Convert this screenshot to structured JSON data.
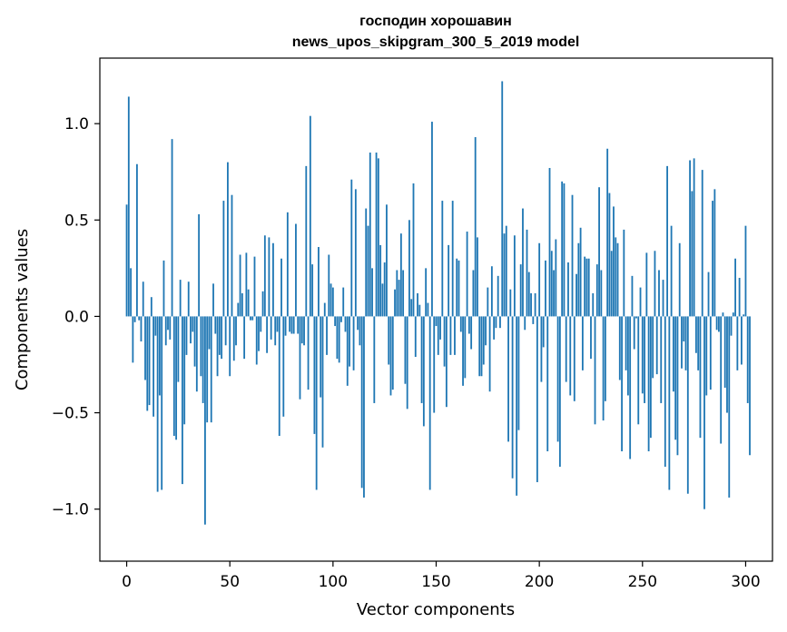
{
  "chart_data": {
    "type": "bar",
    "title": "господин хорошавин",
    "subtitle": "news_upos_skipgram_300_5_2019 model",
    "xlabel": "Vector components",
    "ylabel": "Components values",
    "xlim": [
      -13,
      313
    ],
    "ylim": [
      -1.27,
      1.34
    ],
    "xticks": [
      0,
      50,
      100,
      150,
      200,
      250,
      300
    ],
    "xtick_labels": [
      "0",
      "50",
      "100",
      "150",
      "200",
      "250",
      "300"
    ],
    "yticks": [
      -1.0,
      -0.5,
      0.0,
      0.5,
      1.0
    ],
    "ytick_labels": [
      "−1.0",
      "−0.5",
      "0.0",
      "0.5",
      "1.0"
    ],
    "bar_color": "#1f77b4",
    "grid": false,
    "values": [
      0.58,
      1.14,
      0.25,
      -0.24,
      -0.03,
      0.79,
      -0.02,
      -0.13,
      0.18,
      -0.33,
      -0.49,
      -0.46,
      0.1,
      -0.52,
      -0.1,
      -0.91,
      -0.41,
      -0.9,
      0.29,
      -0.15,
      -0.07,
      -0.12,
      0.92,
      -0.62,
      -0.64,
      -0.34,
      0.19,
      -0.87,
      -0.56,
      -0.2,
      0.18,
      -0.14,
      -0.08,
      -0.26,
      -0.39,
      0.53,
      -0.31,
      -0.45,
      -1.08,
      -0.55,
      -0.17,
      -0.55,
      0.17,
      -0.09,
      -0.31,
      -0.2,
      -0.22,
      0.6,
      -0.15,
      0.8,
      -0.31,
      0.63,
      -0.23,
      -0.15,
      0.07,
      0.32,
      0.12,
      -0.22,
      0.33,
      0.14,
      -0.02,
      -0.02,
      0.31,
      -0.25,
      -0.18,
      -0.08,
      0.13,
      0.42,
      -0.19,
      0.41,
      -0.12,
      0.38,
      -0.15,
      -0.08,
      -0.62,
      0.3,
      -0.52,
      -0.1,
      0.54,
      -0.08,
      -0.09,
      -0.09,
      0.48,
      -0.09,
      -0.43,
      -0.14,
      -0.15,
      0.78,
      -0.38,
      1.04,
      0.27,
      -0.61,
      -0.9,
      0.36,
      -0.42,
      -0.68,
      0.07,
      -0.2,
      0.32,
      0.17,
      0.15,
      -0.05,
      -0.22,
      -0.24,
      -0.03,
      0.15,
      -0.08,
      -0.36,
      -0.26,
      0.71,
      -0.28,
      0.66,
      -0.07,
      -0.15,
      -0.89,
      -0.94,
      0.56,
      0.47,
      0.85,
      0.25,
      -0.45,
      0.85,
      0.82,
      0.37,
      0.17,
      0.28,
      0.58,
      -0.25,
      -0.41,
      -0.38,
      0.14,
      0.24,
      0.19,
      0.43,
      0.24,
      -0.35,
      -0.48,
      0.5,
      0.09,
      0.69,
      -0.21,
      0.12,
      0.06,
      -0.45,
      -0.57,
      0.25,
      0.07,
      -0.9,
      1.01,
      -0.5,
      -0.05,
      -0.2,
      -0.12,
      0.6,
      -0.26,
      -0.47,
      0.37,
      -0.2,
      0.6,
      -0.2,
      0.3,
      0.29,
      -0.08,
      -0.36,
      -0.32,
      0.44,
      -0.09,
      -0.17,
      0.24,
      0.93,
      0.41,
      -0.31,
      -0.31,
      -0.25,
      -0.15,
      0.15,
      -0.39,
      0.26,
      -0.12,
      -0.06,
      0.21,
      -0.06,
      1.22,
      0.43,
      0.47,
      -0.65,
      0.14,
      -0.84,
      0.42,
      -0.93,
      -0.59,
      0.27,
      0.56,
      -0.07,
      0.45,
      0.23,
      0.12,
      -0.04,
      0.12,
      -0.86,
      0.38,
      -0.34,
      -0.16,
      0.29,
      -0.7,
      0.77,
      0.34,
      0.24,
      0.4,
      -0.65,
      -0.78,
      0.7,
      0.69,
      -0.34,
      0.28,
      -0.41,
      0.63,
      -0.44,
      0.22,
      0.38,
      0.46,
      -0.28,
      0.31,
      0.3,
      0.3,
      -0.22,
      0.12,
      -0.56,
      0.27,
      0.67,
      0.24,
      -0.54,
      -0.44,
      0.87,
      0.64,
      0.34,
      0.57,
      0.41,
      0.38,
      -0.33,
      -0.7,
      0.45,
      -0.28,
      -0.41,
      -0.74,
      0.21,
      -0.17,
      -0.01,
      -0.56,
      0.15,
      -0.4,
      -0.45,
      0.33,
      -0.7,
      -0.63,
      -0.32,
      0.34,
      -0.3,
      0.24,
      -0.45,
      0.19,
      -0.78,
      0.78,
      -0.9,
      0.47,
      -0.39,
      -0.64,
      -0.72,
      0.38,
      -0.27,
      -0.13,
      -0.28,
      -0.92,
      0.81,
      0.65,
      0.82,
      -0.19,
      -0.28,
      -0.63,
      0.76,
      -1.0,
      -0.41,
      0.23,
      -0.38,
      0.6,
      0.66,
      -0.07,
      -0.08,
      -0.66,
      0.02,
      -0.37,
      -0.5,
      -0.94,
      -0.1,
      0.02,
      0.3,
      -0.28,
      0.2,
      -0.25,
      0.01,
      0.47,
      -0.45,
      -0.72
    ]
  }
}
